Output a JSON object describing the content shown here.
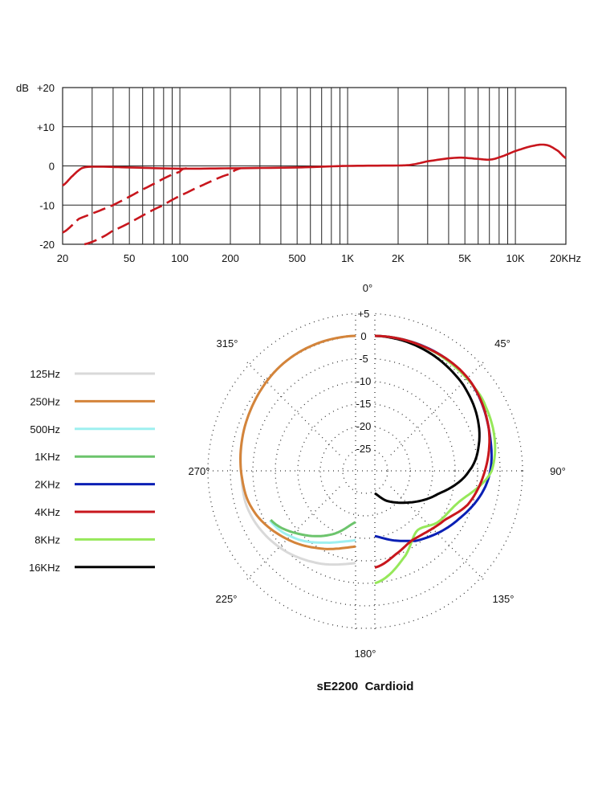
{
  "chart_data": [
    {
      "type": "line",
      "xscale": "log",
      "xlim": [
        20,
        20000
      ],
      "ylim": [
        -20,
        20
      ],
      "ylabel": "dB",
      "grid": true,
      "yticks": [
        {
          "v": 20,
          "label": "+20"
        },
        {
          "v": 10,
          "label": "+10"
        },
        {
          "v": 0,
          "label": "0"
        },
        {
          "v": -10,
          "label": "-10"
        },
        {
          "v": -20,
          "label": "-20"
        }
      ],
      "xticks": [
        {
          "v": 20,
          "label": "20"
        },
        {
          "v": 50,
          "label": "50"
        },
        {
          "v": 100,
          "label": "100"
        },
        {
          "v": 200,
          "label": "200"
        },
        {
          "v": 500,
          "label": "500"
        },
        {
          "v": 1000,
          "label": "1K"
        },
        {
          "v": 2000,
          "label": "2K"
        },
        {
          "v": 5000,
          "label": "5K"
        },
        {
          "v": 10000,
          "label": "10K"
        },
        {
          "v": 20000,
          "label": "20KHz"
        }
      ],
      "color": "#c8161d",
      "series": [
        {
          "style": "solid",
          "points": [
            [
              20,
              -5
            ],
            [
              23,
              -2.5
            ],
            [
              26,
              -0.6
            ],
            [
              30,
              -0.2
            ],
            [
              50,
              -0.4
            ],
            [
              100,
              -0.7
            ],
            [
              200,
              -0.6
            ],
            [
              500,
              -0.4
            ],
            [
              1000,
              0
            ],
            [
              2000,
              0.1
            ],
            [
              2400,
              0.3
            ],
            [
              3000,
              1.2
            ],
            [
              4500,
              2.1
            ],
            [
              6000,
              1.8
            ],
            [
              7000,
              1.6
            ],
            [
              8000,
              2.2
            ],
            [
              10000,
              3.8
            ],
            [
              13000,
              5.2
            ],
            [
              15500,
              5.3
            ],
            [
              18000,
              3.8
            ],
            [
              20000,
              2
            ]
          ]
        },
        {
          "style": "dashed",
          "points": [
            [
              20,
              -17
            ],
            [
              25,
              -13.5
            ],
            [
              40,
              -10
            ],
            [
              60,
              -6
            ],
            [
              100,
              -1.5
            ],
            [
              110,
              -0.6
            ]
          ]
        },
        {
          "style": "dashed",
          "points": [
            [
              27,
              -20
            ],
            [
              40,
              -16.5
            ],
            [
              80,
              -10
            ],
            [
              120,
              -6
            ],
            [
              200,
              -2
            ],
            [
              230,
              -0.6
            ]
          ]
        }
      ]
    },
    {
      "type": "polar",
      "title": "sE2200  Cardioid",
      "rlim": [
        -30,
        5
      ],
      "ring_labels": [
        "+5",
        "0",
        "-5",
        "-10",
        "-15",
        "-20",
        "-25"
      ],
      "angle_labels": [
        "0°",
        "45°",
        "90°",
        "135°",
        "180°",
        "225°",
        "270°",
        "315°"
      ],
      "legend_placement": "left",
      "series": [
        {
          "name": "125Hz",
          "color": "#d9d9d9",
          "points": [
            [
              180,
              -9.5
            ],
            [
              200,
              -8
            ],
            [
              225,
              -6
            ],
            [
              250,
              -4.6
            ],
            [
              270,
              -4.5
            ],
            [
              300,
              -3
            ],
            [
              330,
              -1
            ],
            [
              360,
              0
            ]
          ]
        },
        {
          "name": "250Hz",
          "color": "#d4843a",
          "points": [
            [
              180,
              -13.2
            ],
            [
              200,
              -11.5
            ],
            [
              225,
              -8.5
            ],
            [
              250,
              -5.5
            ],
            [
              270,
              -4.5
            ],
            [
              300,
              -3
            ],
            [
              330,
              -1
            ],
            [
              360,
              0
            ]
          ]
        },
        {
          "name": "500Hz",
          "color": "#9ef0f0",
          "points": [
            [
              180,
              -14.6
            ],
            [
              200,
              -13
            ],
            [
              225,
              -9.5
            ],
            [
              240,
              -8
            ]
          ]
        },
        {
          "name": "1KHz",
          "color": "#6cc46c",
          "points": [
            [
              180,
              -18.6
            ],
            [
              200,
              -15
            ],
            [
              220,
              -11.5
            ],
            [
              240,
              -8.2
            ]
          ]
        },
        {
          "name": "2KHz",
          "color": "#0a1fb4",
          "points": [
            [
              0,
              0
            ],
            [
              45,
              -0.8
            ],
            [
              70,
              -3
            ],
            [
              95,
              -4.8
            ],
            [
              120,
              -8.5
            ],
            [
              150,
              -12
            ],
            [
              165,
              -14
            ],
            [
              180,
              -15.5
            ]
          ]
        },
        {
          "name": "4KHz",
          "color": "#c8161d",
          "points": [
            [
              0,
              0
            ],
            [
              20,
              -0.3
            ],
            [
              45,
              -0.8
            ],
            [
              70,
              -3
            ],
            [
              90,
              -5.5
            ],
            [
              110,
              -8
            ],
            [
              125,
              -11
            ],
            [
              150,
              -12.5
            ],
            [
              165,
              -11
            ],
            [
              180,
              -8.5
            ]
          ]
        },
        {
          "name": "8KHz",
          "color": "#96e85a",
          "points": [
            [
              0,
              0
            ],
            [
              20,
              -0.3
            ],
            [
              45,
              -1
            ],
            [
              60,
              -1.5
            ],
            [
              90,
              -4
            ],
            [
              110,
              -10
            ],
            [
              130,
              -12
            ],
            [
              145,
              -13.7
            ],
            [
              160,
              -10
            ],
            [
              180,
              -5
            ]
          ]
        },
        {
          "name": "16KHz",
          "color": "#000000",
          "points": [
            [
              0,
              0
            ],
            [
              20,
              -0.8
            ],
            [
              45,
              -2.5
            ],
            [
              60,
              -4
            ],
            [
              75,
              -6
            ],
            [
              90,
              -9
            ],
            [
              110,
              -15
            ],
            [
              135,
              -20
            ],
            [
              160,
              -23
            ],
            [
              180,
              -25
            ]
          ]
        }
      ]
    }
  ]
}
